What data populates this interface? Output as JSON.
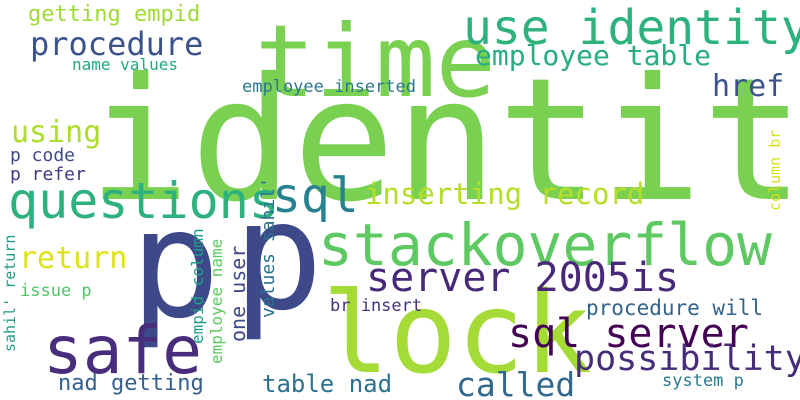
{
  "words": [
    {
      "text": "identity",
      "color": "#7ad151"
    },
    {
      "text": "time",
      "color": "#7ad151"
    },
    {
      "text": "p",
      "color": "#3e4989"
    },
    {
      "text": "p",
      "color": "#3e4989"
    },
    {
      "text": "lock",
      "color": "#a5db36"
    },
    {
      "text": "safe",
      "color": "#472d7b"
    },
    {
      "text": "stackoverflow",
      "color": "#5ec962"
    },
    {
      "text": "use identity",
      "color": "#2db27d"
    },
    {
      "text": "questions",
      "color": "#2db27d"
    },
    {
      "text": "sql",
      "color": "#26828e"
    },
    {
      "text": "server 2005is",
      "color": "#482878"
    },
    {
      "text": "sql server",
      "color": "#440154"
    },
    {
      "text": "possibility",
      "color": "#472c7a"
    },
    {
      "text": "called",
      "color": "#31688e"
    },
    {
      "text": "procedure",
      "color": "#3b528b"
    },
    {
      "text": "employee table",
      "color": "#27ad81"
    },
    {
      "text": "inserting record",
      "color": "#b5de2b"
    },
    {
      "text": "using",
      "color": "#addc30"
    },
    {
      "text": "return",
      "color": "#dde318"
    },
    {
      "text": "href",
      "color": "#3b528b"
    },
    {
      "text": "table nad",
      "color": "#2c728e"
    },
    {
      "text": "nad getting",
      "color": "#355f8d"
    },
    {
      "text": "getting empid",
      "color": "#a0da39"
    },
    {
      "text": "procedure will",
      "color": "#33638d"
    },
    {
      "text": "employee inserted",
      "color": "#2a788e"
    },
    {
      "text": "name values",
      "color": "#22a884"
    },
    {
      "text": "p code",
      "color": "#3e4a89"
    },
    {
      "text": "p refer",
      "color": "#443983"
    },
    {
      "text": "br insert",
      "color": "#46327e"
    },
    {
      "text": "system p",
      "color": "#2a788e"
    },
    {
      "text": "issue p",
      "color": "#52c569"
    },
    {
      "text": "one user",
      "color": "#3e4989"
    },
    {
      "text": "values sahil'",
      "color": "#2d708e"
    },
    {
      "text": "employee name",
      "color": "#5ec962"
    },
    {
      "text": "empid column",
      "color": "#1fa088"
    },
    {
      "text": "sahil' return",
      "color": "#1f9e89"
    },
    {
      "text": "column br",
      "color": "#d8e219"
    }
  ]
}
